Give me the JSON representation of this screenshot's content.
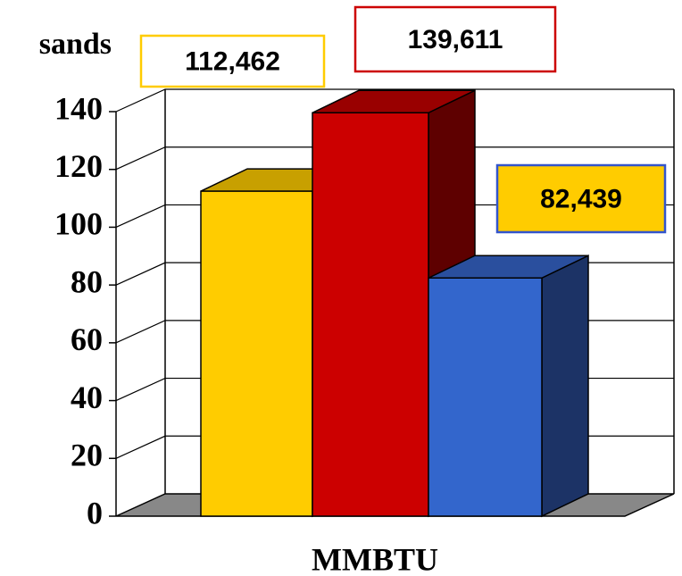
{
  "chart_data": {
    "type": "bar3d",
    "ylabel": "sands",
    "xlabel": "MMBTU",
    "categories": [
      "MMBTU"
    ],
    "series": [
      {
        "color": "#ffcc00",
        "top": "#c8a000",
        "side": "#b08c00",
        "box_fill": "#ffffff",
        "box_stroke": "#ffcc00",
        "values": [
          112.462
        ],
        "value_labels": [
          "112,462"
        ]
      },
      {
        "color": "#cc0000",
        "top": "#990000",
        "side": "#5e0000",
        "box_fill": "#ffffff",
        "box_stroke": "#cc0000",
        "values": [
          139.611
        ],
        "value_labels": [
          "139,611"
        ]
      },
      {
        "color": "#3366cc",
        "top": "#2a4f9e",
        "side": "#1c3366",
        "box_fill": "#ffcc00",
        "box_stroke": "#3355cc",
        "values": [
          82.439
        ],
        "value_labels": [
          "82,439"
        ]
      }
    ],
    "ylim": [
      0,
      140
    ],
    "yticks": [
      0,
      20,
      40,
      60,
      80,
      100,
      120,
      140
    ],
    "grid": true
  }
}
